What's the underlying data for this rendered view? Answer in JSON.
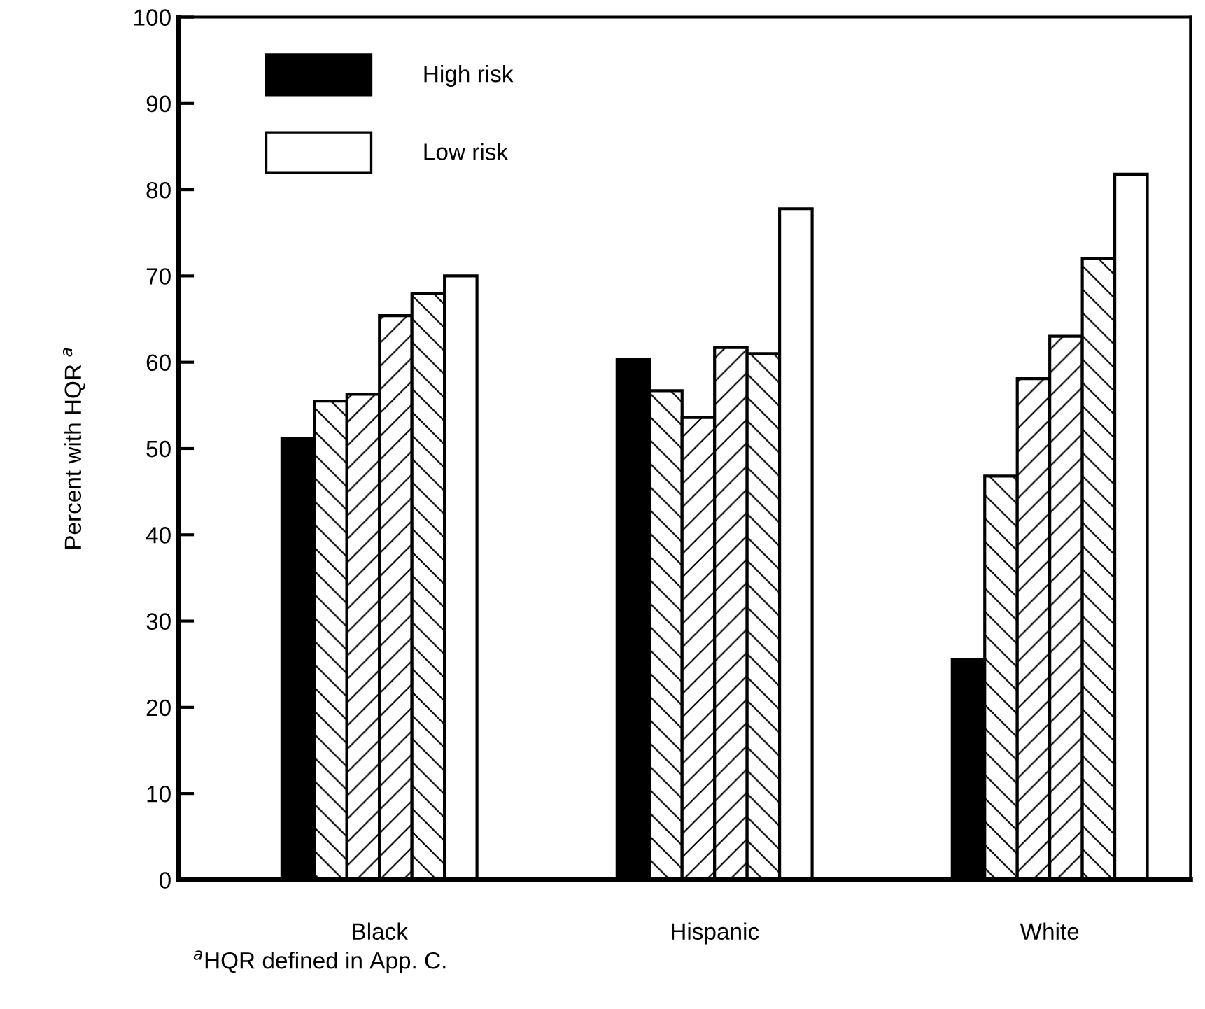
{
  "chart_data": {
    "type": "bar",
    "ylabel": "Percent with HQR $^{a}$",
    "categories": [
      "Black",
      "Hispanic",
      "White"
    ],
    "series": [
      {
        "name": "High risk",
        "color": "#000000",
        "values": [
          51.2,
          60.3,
          25.5
        ]
      },
      {
        "color": "#000000",
        "values": [
          55.5,
          56.7,
          46.8
        ]
      },
      {
        "color": "#000000",
        "values": [
          56.3,
          53.6,
          58.1
        ]
      },
      {
        "color": "#000000",
        "values": [
          65.4,
          61.7,
          63.0
        ]
      },
      {
        "color": "#000000",
        "values": [
          68.0,
          61.0,
          72.0
        ]
      },
      {
        "name": "Low risk",
        "color": "#ffffff",
        "values": [
          70.0,
          77.8,
          81.8
        ]
      }
    ],
    "ylim": [
      0,
      100
    ],
    "yticks": [
      0,
      10,
      20,
      30,
      40,
      50,
      60,
      70,
      80,
      90,
      100
    ],
    "legend": "top left",
    "annotations": [
      "$^{a}$HQR defined in App. C."
    ]
  }
}
